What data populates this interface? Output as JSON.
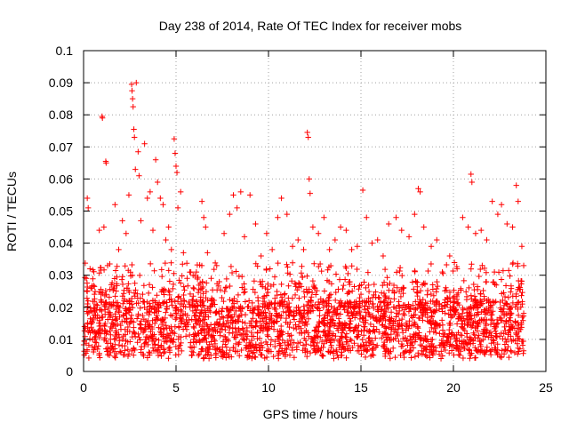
{
  "chart_data": {
    "type": "scatter",
    "title": "Day 238 of 2014, Rate Of TEC Index for receiver mobs",
    "xlabel": "GPS time / hours",
    "ylabel": "ROTI / TECUs",
    "xlim": [
      0,
      25
    ],
    "ylim": [
      0,
      0.1
    ],
    "xticks": [
      "0",
      "5",
      "10",
      "15",
      "20",
      "25"
    ],
    "yticks": [
      "0",
      "0.01",
      "0.02",
      "0.03",
      "0.04",
      "0.05",
      "0.06",
      "0.07",
      "0.08",
      "0.09",
      "0.1"
    ],
    "grid": true,
    "marker": "+",
    "color": "#ff0000",
    "points": [
      [
        0.05,
        0.014
      ],
      [
        0.15,
        0.029
      ],
      [
        0.2,
        0.054
      ],
      [
        0.25,
        0.051
      ],
      [
        0.35,
        0.032
      ],
      [
        0.45,
        0.026
      ],
      [
        0.6,
        0.019
      ],
      [
        0.7,
        0.012
      ],
      [
        0.85,
        0.044
      ],
      [
        1.0,
        0.0795
      ],
      [
        1.02,
        0.079
      ],
      [
        1.1,
        0.045
      ],
      [
        1.2,
        0.0655
      ],
      [
        1.22,
        0.065
      ],
      [
        1.3,
        0.033
      ],
      [
        1.5,
        0.027
      ],
      [
        1.7,
        0.052
      ],
      [
        1.9,
        0.038
      ],
      [
        2.1,
        0.047
      ],
      [
        2.3,
        0.043
      ],
      [
        2.45,
        0.055
      ],
      [
        2.6,
        0.0895
      ],
      [
        2.62,
        0.0875
      ],
      [
        2.65,
        0.085
      ],
      [
        2.68,
        0.0825
      ],
      [
        2.72,
        0.0755
      ],
      [
        2.75,
        0.073
      ],
      [
        2.8,
        0.063
      ],
      [
        2.85,
        0.09
      ],
      [
        2.95,
        0.0685
      ],
      [
        3.0,
        0.061
      ],
      [
        3.1,
        0.047
      ],
      [
        3.3,
        0.071
      ],
      [
        3.45,
        0.054
      ],
      [
        3.6,
        0.056
      ],
      [
        3.75,
        0.044
      ],
      [
        3.9,
        0.066
      ],
      [
        4.0,
        0.059
      ],
      [
        4.15,
        0.054
      ],
      [
        4.3,
        0.052
      ],
      [
        4.45,
        0.041
      ],
      [
        4.6,
        0.045
      ],
      [
        4.75,
        0.038
      ],
      [
        4.9,
        0.0725
      ],
      [
        4.95,
        0.068
      ],
      [
        5.0,
        0.064
      ],
      [
        5.05,
        0.062
      ],
      [
        5.1,
        0.051
      ],
      [
        5.25,
        0.056
      ],
      [
        5.4,
        0.037
      ],
      [
        5.6,
        0.029
      ],
      [
        5.8,
        0.031
      ],
      [
        6.1,
        0.031
      ],
      [
        6.4,
        0.053
      ],
      [
        6.5,
        0.048
      ],
      [
        6.6,
        0.045
      ],
      [
        6.7,
        0.037
      ],
      [
        6.9,
        0.029
      ],
      [
        7.2,
        0.033
      ],
      [
        7.6,
        0.043
      ],
      [
        7.9,
        0.049
      ],
      [
        8.1,
        0.055
      ],
      [
        8.3,
        0.051
      ],
      [
        8.5,
        0.056
      ],
      [
        8.7,
        0.042
      ],
      [
        9.0,
        0.055
      ],
      [
        9.3,
        0.046
      ],
      [
        9.6,
        0.036
      ],
      [
        9.9,
        0.043
      ],
      [
        10.2,
        0.038
      ],
      [
        10.5,
        0.048
      ],
      [
        10.7,
        0.054
      ],
      [
        11.0,
        0.049
      ],
      [
        11.3,
        0.039
      ],
      [
        11.6,
        0.041
      ],
      [
        11.9,
        0.038
      ],
      [
        12.1,
        0.0745
      ],
      [
        12.15,
        0.073
      ],
      [
        12.2,
        0.06
      ],
      [
        12.25,
        0.0555
      ],
      [
        12.4,
        0.045
      ],
      [
        12.7,
        0.043
      ],
      [
        13.0,
        0.048
      ],
      [
        13.3,
        0.038
      ],
      [
        13.6,
        0.041
      ],
      [
        13.9,
        0.045
      ],
      [
        14.2,
        0.044
      ],
      [
        14.5,
        0.038
      ],
      [
        14.8,
        0.039
      ],
      [
        15.1,
        0.0565
      ],
      [
        15.3,
        0.048
      ],
      [
        15.6,
        0.04
      ],
      [
        15.9,
        0.041
      ],
      [
        16.2,
        0.036
      ],
      [
        16.5,
        0.046
      ],
      [
        16.9,
        0.048
      ],
      [
        17.2,
        0.044
      ],
      [
        17.6,
        0.042
      ],
      [
        17.9,
        0.049
      ],
      [
        18.1,
        0.057
      ],
      [
        18.2,
        0.056
      ],
      [
        18.4,
        0.045
      ],
      [
        18.8,
        0.039
      ],
      [
        19.1,
        0.041
      ],
      [
        19.4,
        0.031
      ],
      [
        19.8,
        0.036
      ],
      [
        20.2,
        0.032
      ],
      [
        20.5,
        0.048
      ],
      [
        20.8,
        0.045
      ],
      [
        20.95,
        0.0615
      ],
      [
        21.0,
        0.059
      ],
      [
        21.2,
        0.043
      ],
      [
        21.5,
        0.044
      ],
      [
        21.8,
        0.041
      ],
      [
        22.1,
        0.053
      ],
      [
        22.4,
        0.049
      ],
      [
        22.6,
        0.052
      ],
      [
        22.9,
        0.046
      ],
      [
        23.2,
        0.045
      ],
      [
        23.4,
        0.058
      ],
      [
        23.5,
        0.053
      ],
      [
        23.7,
        0.039
      ],
      [
        23.8,
        0.033
      ]
    ]
  }
}
